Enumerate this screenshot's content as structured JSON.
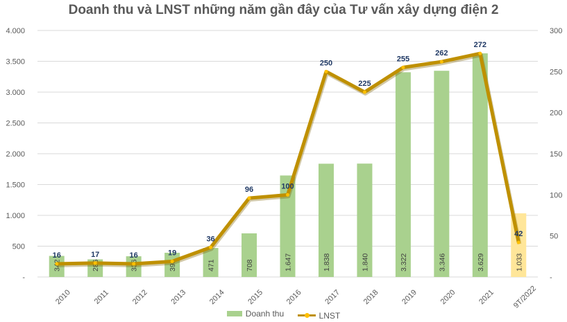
{
  "chart_data": {
    "type": "bar+line",
    "title": "Doanh thu và LNST những năm gần đây của Tư vấn xây dựng điện 2",
    "categories": [
      "2010",
      "2011",
      "2012",
      "2013",
      "2014",
      "2015",
      "2016",
      "2017",
      "2018",
      "2019",
      "2020",
      "2021",
      "9T/2022"
    ],
    "series": [
      {
        "name": "Doanh thu",
        "axis": "left",
        "type": "bar",
        "values": [
          342,
          286,
          336,
          393,
          471,
          708,
          1647,
          1838,
          1840,
          3322,
          3346,
          3629,
          1033
        ],
        "value_labels": [
          "342",
          "286",
          "336",
          "393",
          "471",
          "708",
          "1.647",
          "1.838",
          "1.840",
          "3.322",
          "3.346",
          "3.629",
          "1.033"
        ],
        "color": "#a9d18e",
        "highlight_color": "#ffe699"
      },
      {
        "name": "LNST",
        "axis": "right",
        "type": "line",
        "values": [
          16,
          17,
          16,
          19,
          36,
          96,
          100,
          250,
          225,
          255,
          262,
          272,
          42
        ],
        "color": "#bf9000",
        "marker_color": "#ffc000"
      }
    ],
    "left_axis": {
      "ylim": [
        0,
        4000
      ],
      "ticks": [
        "-",
        "500",
        "1.000",
        "1.500",
        "2.000",
        "2.500",
        "3.000",
        "3.500",
        "4.000"
      ]
    },
    "right_axis": {
      "ylim": [
        0,
        300
      ],
      "ticks": [
        "-",
        "50",
        "100",
        "150",
        "200",
        "250",
        "300"
      ]
    },
    "grid": true,
    "legend": "bottom"
  }
}
